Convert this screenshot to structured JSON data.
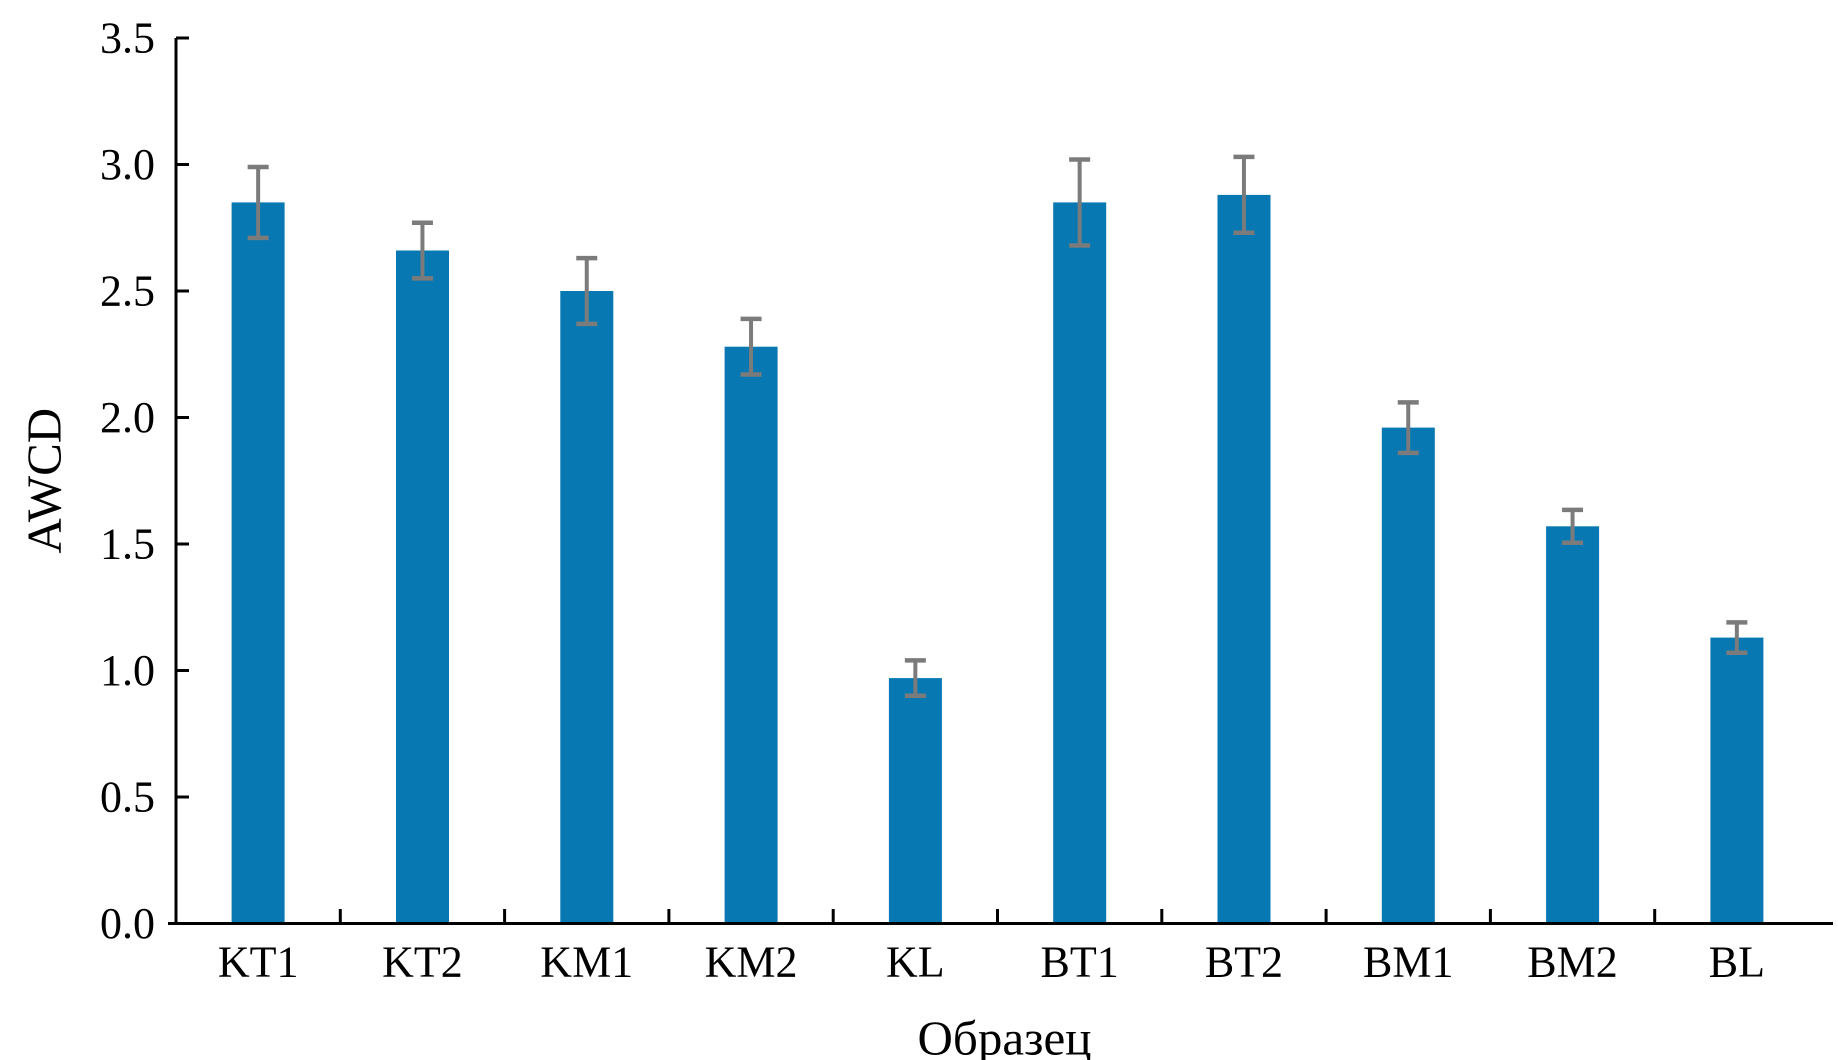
{
  "chart_data": {
    "type": "bar",
    "title": "",
    "xlabel": "Образец",
    "ylabel": "AWCD",
    "categories": [
      "KT1",
      "KT2",
      "KM1",
      "KM2",
      "KL",
      "BT1",
      "BT2",
      "BM1",
      "BM2",
      "BL"
    ],
    "values": [
      2.85,
      2.66,
      2.5,
      2.28,
      0.97,
      2.85,
      2.88,
      1.96,
      1.57,
      1.13
    ],
    "errors": [
      0.14,
      0.11,
      0.13,
      0.11,
      0.07,
      0.17,
      0.15,
      0.1,
      0.065,
      0.06
    ],
    "ylim": [
      0,
      3.5
    ],
    "ytick_step": 0.5,
    "ytick_labels": [
      "0.0",
      "0.5",
      "1.0",
      "1.5",
      "2.0",
      "2.5",
      "3.0",
      "3.5"
    ],
    "grid": false,
    "legend": null,
    "bar_color": "#0778b2",
    "error_color": "#7b7b7b",
    "axis_color": "#000000"
  }
}
